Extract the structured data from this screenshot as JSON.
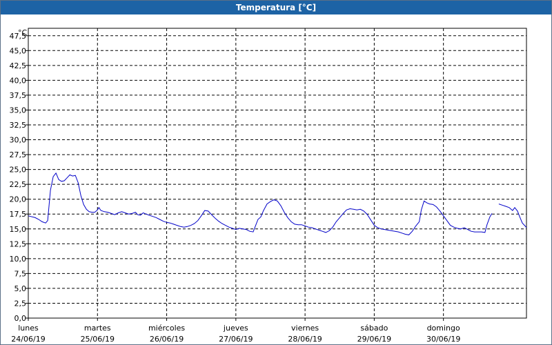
{
  "window": {
    "title": "Temperatura [°C]"
  },
  "chart_data": {
    "type": "line",
    "title": "Temperatura [°C]",
    "unit_label": "°C",
    "ylim": [
      0,
      48.75
    ],
    "y_ticks": [
      "0,0",
      "2,5",
      "5,0",
      "7,5",
      "10,0",
      "12,5",
      "15,0",
      "17,5",
      "20,0",
      "22,5",
      "25,0",
      "27,5",
      "30,0",
      "32,5",
      "35,0",
      "37,5",
      "40,0",
      "42,5",
      "45,0",
      "47,5"
    ],
    "y_tick_values": [
      0,
      2.5,
      5,
      7.5,
      10,
      12.5,
      15,
      17.5,
      20,
      22.5,
      25,
      27.5,
      30,
      32.5,
      35,
      37.5,
      40,
      42.5,
      45,
      47.5
    ],
    "x_range_days": [
      0,
      7.2
    ],
    "x_days": [
      {
        "weekday": "lunes",
        "date": "24/06/19"
      },
      {
        "weekday": "martes",
        "date": "25/06/19"
      },
      {
        "weekday": "miércoles",
        "date": "26/06/19"
      },
      {
        "weekday": "jueves",
        "date": "27/06/19"
      },
      {
        "weekday": "viernes",
        "date": "28/06/19"
      },
      {
        "weekday": "sábado",
        "date": "29/06/19"
      },
      {
        "weekday": "domingo",
        "date": "30/06/19"
      }
    ],
    "grid": true,
    "line_color": "#0000c8",
    "series": [
      {
        "segments": [
          [
            [
              0.0,
              17.2
            ],
            [
              0.1,
              16.9
            ],
            [
              0.15,
              16.6
            ],
            [
              0.2,
              16.2
            ],
            [
              0.25,
              16.0
            ],
            [
              0.28,
              16.4
            ],
            [
              0.32,
              21.5
            ],
            [
              0.36,
              23.8
            ],
            [
              0.4,
              24.4
            ],
            [
              0.44,
              23.3
            ],
            [
              0.48,
              23.0
            ],
            [
              0.52,
              23.1
            ],
            [
              0.56,
              23.6
            ],
            [
              0.6,
              24.1
            ],
            [
              0.64,
              23.9
            ],
            [
              0.68,
              24.0
            ],
            [
              0.72,
              22.8
            ],
            [
              0.76,
              20.6
            ],
            [
              0.8,
              19.1
            ],
            [
              0.84,
              18.3
            ],
            [
              0.88,
              17.9
            ],
            [
              0.92,
              17.8
            ],
            [
              0.96,
              17.8
            ],
            [
              1.0,
              18.2
            ],
            [
              1.02,
              18.6
            ],
            [
              1.05,
              18.1
            ],
            [
              1.1,
              17.9
            ],
            [
              1.15,
              17.8
            ],
            [
              1.2,
              17.6
            ],
            [
              1.25,
              17.4
            ],
            [
              1.3,
              17.7
            ],
            [
              1.35,
              17.9
            ],
            [
              1.4,
              17.7
            ],
            [
              1.45,
              17.5
            ],
            [
              1.5,
              17.6
            ],
            [
              1.55,
              17.8
            ],
            [
              1.58,
              17.4
            ],
            [
              1.62,
              17.3
            ],
            [
              1.66,
              17.7
            ],
            [
              1.7,
              17.5
            ],
            [
              1.75,
              17.3
            ],
            [
              1.8,
              17.1
            ],
            [
              1.85,
              16.9
            ],
            [
              1.9,
              16.6
            ],
            [
              1.95,
              16.3
            ],
            [
              2.0,
              16.1
            ],
            [
              2.05,
              16.0
            ],
            [
              2.1,
              15.8
            ],
            [
              2.15,
              15.6
            ],
            [
              2.2,
              15.4
            ],
            [
              2.25,
              15.3
            ],
            [
              2.3,
              15.4
            ],
            [
              2.35,
              15.6
            ],
            [
              2.4,
              15.9
            ],
            [
              2.45,
              16.4
            ],
            [
              2.5,
              17.2
            ],
            [
              2.55,
              18.1
            ],
            [
              2.6,
              18.0
            ],
            [
              2.65,
              17.4
            ],
            [
              2.7,
              16.8
            ],
            [
              2.75,
              16.3
            ],
            [
              2.8,
              15.9
            ],
            [
              2.85,
              15.6
            ],
            [
              2.9,
              15.3
            ],
            [
              2.95,
              15.1
            ],
            [
              3.0,
              14.9
            ],
            [
              3.05,
              15.1
            ],
            [
              3.1,
              15.0
            ],
            [
              3.15,
              14.9
            ],
            [
              3.2,
              14.6
            ],
            [
              3.25,
              14.5
            ],
            [
              3.28,
              15.4
            ],
            [
              3.32,
              16.6
            ],
            [
              3.36,
              17.0
            ],
            [
              3.4,
              18.1
            ],
            [
              3.45,
              19.2
            ],
            [
              3.5,
              19.6
            ],
            [
              3.55,
              19.9
            ],
            [
              3.6,
              19.7
            ],
            [
              3.65,
              18.9
            ],
            [
              3.7,
              17.8
            ],
            [
              3.75,
              16.9
            ],
            [
              3.8,
              16.2
            ],
            [
              3.85,
              15.8
            ],
            [
              3.9,
              15.7
            ],
            [
              3.95,
              15.7
            ],
            [
              4.0,
              15.5
            ],
            [
              4.05,
              15.3
            ],
            [
              4.1,
              15.2
            ],
            [
              4.15,
              15.0
            ],
            [
              4.2,
              14.8
            ],
            [
              4.25,
              14.6
            ],
            [
              4.3,
              14.4
            ],
            [
              4.35,
              14.7
            ],
            [
              4.4,
              15.3
            ],
            [
              4.45,
              16.2
            ],
            [
              4.5,
              16.9
            ],
            [
              4.55,
              17.6
            ],
            [
              4.6,
              18.2
            ],
            [
              4.65,
              18.4
            ],
            [
              4.7,
              18.3
            ],
            [
              4.75,
              18.2
            ],
            [
              4.8,
              18.3
            ],
            [
              4.85,
              18.0
            ],
            [
              4.9,
              17.4
            ],
            [
              4.95,
              16.5
            ],
            [
              5.0,
              15.6
            ],
            [
              5.05,
              15.2
            ],
            [
              5.1,
              15.0
            ],
            [
              5.15,
              14.9
            ],
            [
              5.2,
              14.8
            ],
            [
              5.25,
              14.7
            ],
            [
              5.3,
              14.6
            ],
            [
              5.35,
              14.5
            ],
            [
              5.4,
              14.3
            ],
            [
              5.45,
              14.1
            ],
            [
              5.5,
              14.0
            ],
            [
              5.55,
              14.6
            ],
            [
              5.6,
              15.5
            ],
            [
              5.65,
              16.2
            ],
            [
              5.68,
              18.2
            ],
            [
              5.72,
              19.7
            ],
            [
              5.76,
              19.4
            ],
            [
              5.8,
              19.2
            ],
            [
              5.85,
              19.1
            ],
            [
              5.9,
              18.7
            ],
            [
              5.95,
              18.0
            ],
            [
              6.0,
              17.2
            ],
            [
              6.05,
              16.4
            ],
            [
              6.1,
              15.6
            ],
            [
              6.15,
              15.3
            ],
            [
              6.2,
              15.1
            ],
            [
              6.25,
              15.0
            ],
            [
              6.3,
              15.2
            ],
            [
              6.35,
              14.9
            ],
            [
              6.4,
              14.6
            ],
            [
              6.45,
              14.5
            ],
            [
              6.5,
              14.5
            ],
            [
              6.55,
              14.5
            ],
            [
              6.6,
              14.4
            ],
            [
              6.63,
              15.7
            ],
            [
              6.67,
              17.0
            ],
            [
              6.7,
              17.6
            ]
          ],
          [
            [
              6.8,
              19.2
            ],
            [
              6.85,
              19.0
            ],
            [
              6.9,
              18.8
            ],
            [
              6.95,
              18.6
            ],
            [
              7.0,
              18.1
            ],
            [
              7.03,
              18.6
            ],
            [
              7.07,
              18.0
            ],
            [
              7.1,
              17.1
            ],
            [
              7.14,
              16.0
            ],
            [
              7.18,
              15.5
            ],
            [
              7.2,
              15.2
            ]
          ]
        ]
      }
    ]
  }
}
